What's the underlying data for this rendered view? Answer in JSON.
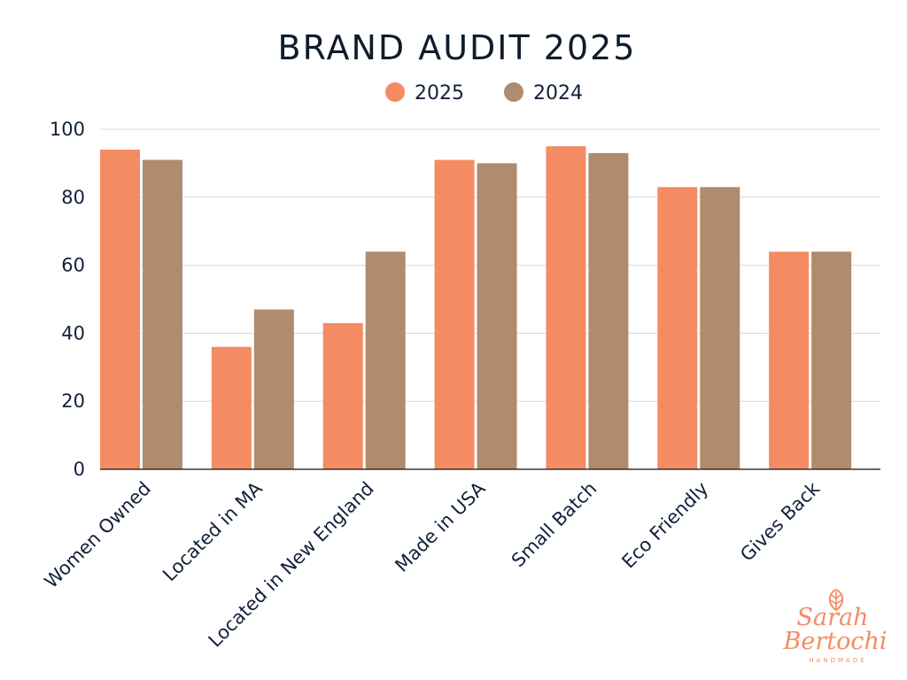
{
  "logo": {
    "line1": "Sarah",
    "line2": "Bertochi",
    "line3": "HANDMADE"
  },
  "chart_data": {
    "type": "bar",
    "title": "BRAND AUDIT 2025",
    "categories": [
      "Women Owned",
      "Located in MA",
      "Located in New England",
      "Made in USA",
      "Small Batch",
      "Eco Friendly",
      "Gives Back"
    ],
    "series": [
      {
        "name": "2025",
        "color": "#f48b63",
        "values": [
          94,
          36,
          43,
          91,
          95,
          83,
          64
        ]
      },
      {
        "name": "2024",
        "color": "#b08b6e",
        "values": [
          91,
          47,
          64,
          90,
          93,
          83,
          64
        ]
      }
    ],
    "ylim": [
      0,
      100
    ],
    "yticks": [
      0,
      20,
      40,
      60,
      80,
      100
    ],
    "grid": true,
    "legend_position": "top-center",
    "xlabel": "",
    "ylabel": ""
  }
}
